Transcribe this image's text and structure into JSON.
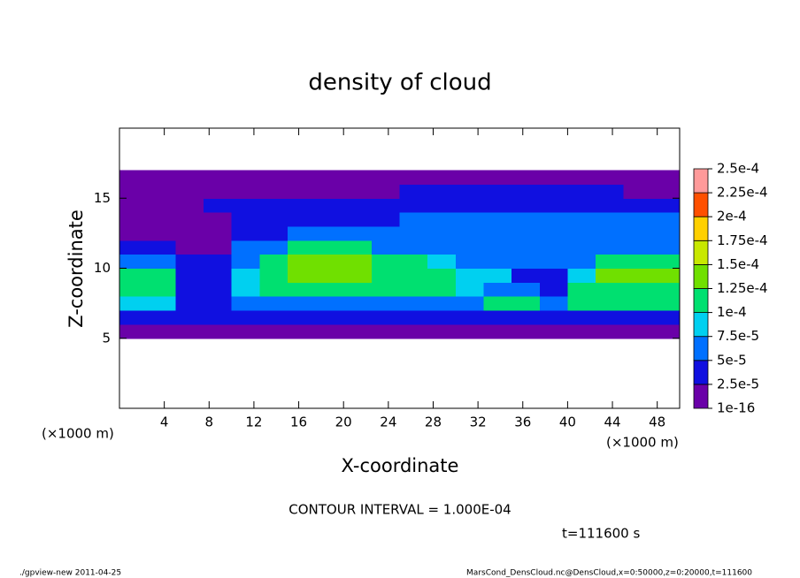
{
  "chart_data": {
    "type": "contour",
    "title": "density of cloud",
    "xlabel": "X-coordinate",
    "ylabel": "Z-coordinate",
    "x_unit_left": "(×1000 m)",
    "x_unit_right": "(×1000 m)",
    "annotation": "CONTOUR INTERVAL = 1.000E-04",
    "time_label": "t=111600 s",
    "footer_left": "./gpview-new  2011-04-25",
    "footer_right": "MarsCond_DensCloud.nc@DensCloud,x=0:50000,z=0:20000,t=111600",
    "xlim": [
      0,
      50
    ],
    "ylim": [
      0,
      20
    ],
    "xticks": [
      4,
      8,
      12,
      16,
      20,
      24,
      28,
      32,
      36,
      40,
      44,
      48
    ],
    "yticks": [
      5,
      10,
      15
    ],
    "x": [
      1.25,
      3.75,
      6.25,
      8.75,
      11.25,
      13.75,
      16.25,
      18.75,
      21.25,
      23.75,
      26.25,
      28.75,
      31.25,
      33.75,
      36.25,
      38.75,
      41.25,
      43.75,
      46.25,
      48.75
    ],
    "z": [
      5.5,
      6.5,
      7.5,
      8.5,
      9.5,
      10.5,
      11.5,
      12.5,
      13.5,
      14.5,
      15.5,
      16.5
    ],
    "values": [
      [
        1e-05,
        1e-05,
        1e-05,
        1e-05,
        1e-05,
        1e-05,
        1e-05,
        1e-05,
        1e-05,
        1e-05,
        1e-05,
        1e-05,
        1e-05,
        1e-05,
        1e-05,
        1e-05,
        1e-05,
        1e-05,
        1e-05,
        1e-05
      ],
      [
        3e-05,
        3e-05,
        3e-05,
        3e-05,
        3e-05,
        3e-05,
        3e-05,
        3e-05,
        3e-05,
        3e-05,
        3e-05,
        3e-05,
        3e-05,
        3e-05,
        3e-05,
        3e-05,
        4e-05,
        4e-05,
        4e-05,
        4e-05
      ],
      [
        8e-05,
        8e-05,
        4e-05,
        4e-05,
        5e-05,
        7e-05,
        7e-05,
        7e-05,
        7e-05,
        7e-05,
        7e-05,
        7e-05,
        6e-05,
        0.000105,
        0.000105,
        5e-05,
        0.0001,
        0.0001,
        0.0001,
        0.0001
      ],
      [
        0.00011,
        0.00011,
        4e-05,
        4e-05,
        8e-05,
        0.00011,
        0.00011,
        0.00011,
        0.00011,
        0.00011,
        0.00011,
        0.00011,
        8e-05,
        7e-05,
        7e-05,
        4e-05,
        0.0001,
        0.00012,
        0.00012,
        0.00012
      ],
      [
        0.00011,
        0.00011,
        4e-05,
        4e-05,
        9e-05,
        0.000115,
        0.00013,
        0.00013,
        0.00013,
        0.000115,
        0.000115,
        0.000115,
        8e-05,
        8e-05,
        4e-05,
        4e-05,
        9e-05,
        0.00013,
        0.00013,
        0.00013
      ],
      [
        5e-05,
        5e-05,
        3e-05,
        3e-05,
        6e-05,
        0.0001,
        0.000135,
        0.000135,
        0.000135,
        0.000115,
        0.000115,
        9e-05,
        7e-05,
        7e-05,
        5e-05,
        5e-05,
        6e-05,
        0.00011,
        0.00011,
        0.00011
      ],
      [
        3e-05,
        3e-05,
        2e-05,
        2e-05,
        5e-05,
        5e-05,
        0.000105,
        0.000105,
        0.000105,
        7e-05,
        7e-05,
        7e-05,
        6e-05,
        6e-05,
        6e-05,
        6e-05,
        6e-05,
        6e-05,
        6e-05,
        6e-05
      ],
      [
        1.5e-05,
        1.5e-05,
        1.5e-05,
        1.5e-05,
        4e-05,
        4e-05,
        6e-05,
        6e-05,
        6e-05,
        5e-05,
        5e-05,
        5e-05,
        5e-05,
        5e-05,
        5e-05,
        5e-05,
        5e-05,
        5e-05,
        5e-05,
        5e-05
      ],
      [
        1.5e-05,
        1.5e-05,
        1.5e-05,
        1.5e-05,
        3e-05,
        3e-05,
        3e-05,
        3e-05,
        3e-05,
        3e-05,
        5e-05,
        5e-05,
        5e-05,
        5e-05,
        5e-05,
        5e-05,
        5e-05,
        5e-05,
        5e-05,
        5e-05
      ],
      [
        1e-05,
        1e-05,
        1e-05,
        2.5e-05,
        2.5e-05,
        2.5e-05,
        2.5e-05,
        2.5e-05,
        4e-05,
        4e-05,
        4e-05,
        4e-05,
        4e-05,
        4e-05,
        4e-05,
        4e-05,
        4e-05,
        4e-05,
        4e-05,
        2.5e-05
      ],
      [
        1.5e-05,
        1.5e-05,
        1.5e-05,
        1.5e-05,
        1.5e-05,
        1.5e-05,
        1.5e-05,
        1.5e-05,
        1.5e-05,
        1.5e-05,
        3e-05,
        3e-05,
        3e-05,
        3e-05,
        3e-05,
        3e-05,
        3e-05,
        3e-05,
        1.5e-05,
        1.5e-05
      ],
      [
        1e-05,
        1e-05,
        1e-05,
        1e-05,
        1e-05,
        1e-05,
        1e-05,
        1e-05,
        1e-05,
        1e-05,
        1e-05,
        1e-05,
        1e-05,
        1e-05,
        1e-05,
        1e-05,
        1e-05,
        1e-05,
        1e-05,
        1e-05
      ]
    ],
    "colorbar": {
      "levels": [
        1e-16,
        {
          "value": 2.5e-05,
          "label": "2.5e-5"
        },
        {
          "value": 5e-05,
          "label": "5e-5"
        },
        {
          "value": 7.5e-05,
          "label": "7.5e-5"
        },
        {
          "value": 0.0001,
          "label": "1e-4"
        },
        {
          "value": 0.000125,
          "label": "1.25e-4"
        },
        {
          "value": 0.00015,
          "label": "1.5e-4"
        },
        {
          "value": 0.000175,
          "label": "1.75e-4"
        },
        {
          "value": 0.0002,
          "label": "2e-4"
        },
        {
          "value": 0.000225,
          "label": "2.25e-4"
        },
        {
          "value": 0.00025,
          "label": "2.5e-4"
        }
      ],
      "colors": [
        "#6a00a8",
        "#1010e0",
        "#0070ff",
        "#00d0f0",
        "#00e070",
        "#70e000",
        "#c8e800",
        "#ffd000",
        "#ff5000",
        "#ff9a9a"
      ]
    }
  }
}
